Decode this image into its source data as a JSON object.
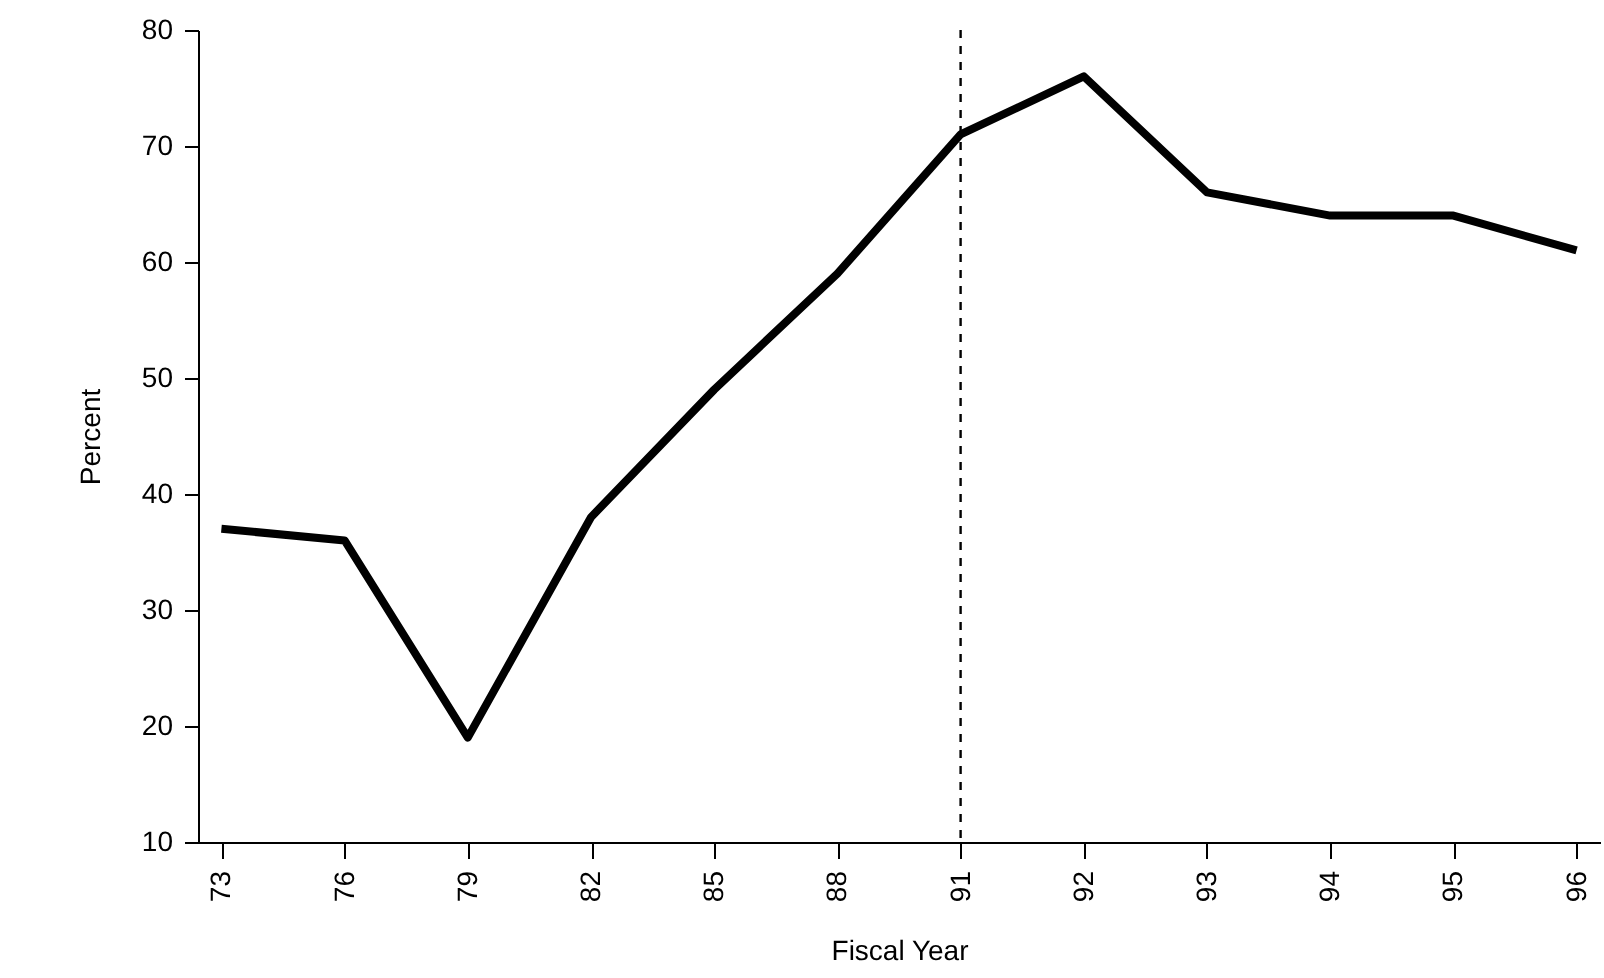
{
  "chart_data": {
    "type": "line",
    "xlabel": "Fiscal Year",
    "ylabel": "Percent",
    "categories": [
      "73",
      "76",
      "79",
      "82",
      "85",
      "88",
      "91",
      "92",
      "93",
      "94",
      "95",
      "96"
    ],
    "series": [
      {
        "color": "#000000",
        "values": [
          37,
          36,
          19,
          38,
          49,
          59,
          71,
          76,
          66,
          64,
          64,
          61
        ]
      }
    ],
    "ylim": [
      10,
      80
    ],
    "yticks": [
      10,
      20,
      30,
      40,
      50,
      60,
      70,
      80
    ],
    "grid": false,
    "ref_lines": [
      {
        "axis": "x",
        "value": "91",
        "line_style": "dashed",
        "color": "#000000"
      }
    ]
  }
}
